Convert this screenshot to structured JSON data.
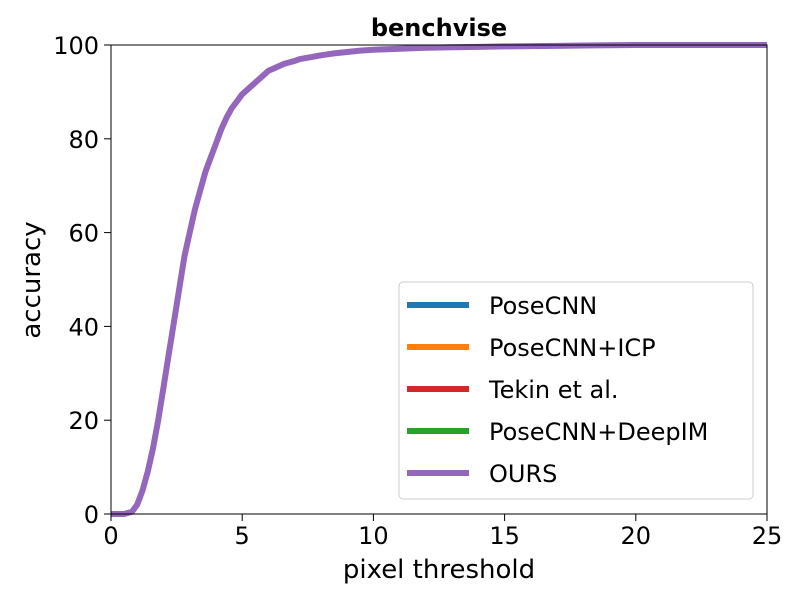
{
  "chart_data": {
    "type": "line",
    "title": "benchvise",
    "xlabel": "pixel threshold",
    "ylabel": "accuracy",
    "xlim": [
      0,
      25
    ],
    "ylim": [
      0,
      100
    ],
    "xticks": [
      0,
      5,
      10,
      15,
      20,
      25
    ],
    "yticks": [
      0,
      20,
      40,
      60,
      80,
      100
    ],
    "grid": false,
    "legend_position": "lower-right",
    "series": [
      {
        "name": "PoseCNN",
        "color": "#1f77b4",
        "x": [],
        "y": []
      },
      {
        "name": "PoseCNN+ICP",
        "color": "#ff7f0e",
        "x": [],
        "y": []
      },
      {
        "name": "Tekin et al.",
        "color": "#d62728",
        "x": [],
        "y": []
      },
      {
        "name": "PoseCNN+DeepIM",
        "color": "#2ca02c",
        "x": [],
        "y": []
      },
      {
        "name": "OURS",
        "color": "#9467bd",
        "x": [
          0,
          0.5,
          0.8,
          1.0,
          1.2,
          1.4,
          1.6,
          1.8,
          2.0,
          2.2,
          2.4,
          2.6,
          2.8,
          3.0,
          3.2,
          3.4,
          3.6,
          3.8,
          4.0,
          4.2,
          4.4,
          4.6,
          4.8,
          5.0,
          5.2,
          5.4,
          5.6,
          5.8,
          6.0,
          6.2,
          6.4,
          6.6,
          6.8,
          7.0,
          7.2,
          7.5,
          8.0,
          8.5,
          9.0,
          9.5,
          10.0,
          11.0,
          12.0,
          13.0,
          14.0,
          15.0,
          17.0,
          18.0,
          20.0,
          25.0
        ],
        "y": [
          0,
          0,
          0.5,
          2,
          5,
          9,
          14,
          20,
          27,
          34,
          41,
          48,
          55,
          60,
          65,
          69,
          73,
          76,
          79,
          82,
          84.5,
          86.5,
          88,
          89.5,
          90.5,
          91.5,
          92.5,
          93.5,
          94.5,
          95,
          95.5,
          96,
          96.3,
          96.6,
          97,
          97.3,
          97.8,
          98.2,
          98.5,
          98.8,
          99,
          99.2,
          99.4,
          99.5,
          99.6,
          99.7,
          99.8,
          99.9,
          100,
          100
        ]
      }
    ]
  }
}
